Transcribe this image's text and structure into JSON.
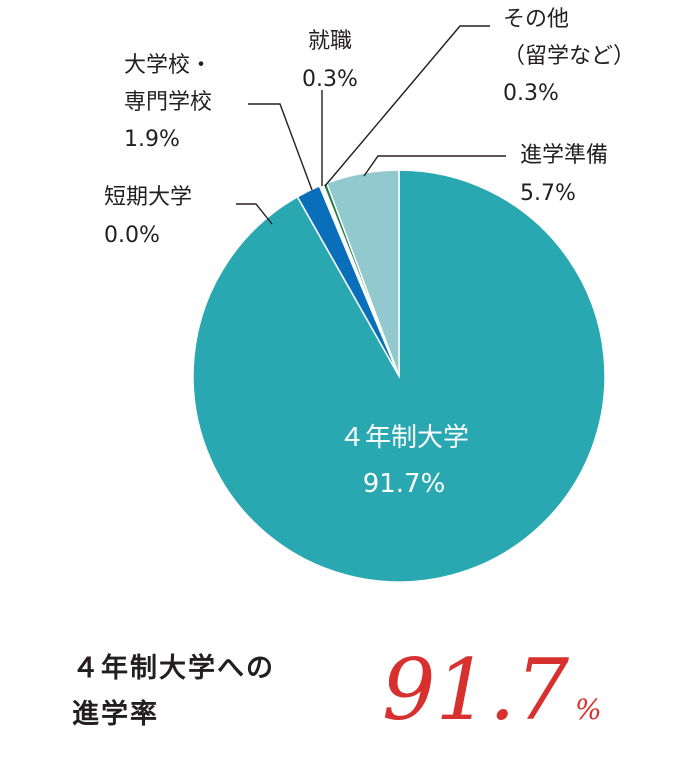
{
  "chart_data": {
    "type": "pie",
    "title": "",
    "slices": [
      {
        "label": "４年制大学",
        "label_lines": [
          "４年制大学"
        ],
        "value_text": "91.7%",
        "value": 91.7,
        "color": "#29a8b2"
      },
      {
        "label": "短期大学",
        "label_lines": [
          "短期大学"
        ],
        "value_text": "0.0%",
        "value": 0.0,
        "color": "#0a6fba"
      },
      {
        "label": "大学校・専門学校",
        "label_lines": [
          "大学校・",
          "専門学校"
        ],
        "value_text": "1.9%",
        "value": 1.9,
        "color": "#0a6fba"
      },
      {
        "label": "就職",
        "label_lines": [
          "就職"
        ],
        "value_text": "0.3%",
        "value": 0.3,
        "color": "#ffffff"
      },
      {
        "label": "その他（留学など）",
        "label_lines": [
          "その他",
          "（留学など）"
        ],
        "value_text": "0.3%",
        "value": 0.3,
        "color": "#1b7c45"
      },
      {
        "label": "進学準備",
        "label_lines": [
          "進学準備"
        ],
        "value_text": "5.7%",
        "value": 5.7,
        "color": "#92c9cf"
      }
    ]
  },
  "summary": {
    "label_line1": "４年制大学への",
    "label_line2": "進学率",
    "rate_number": "91.7",
    "rate_unit": "%"
  }
}
